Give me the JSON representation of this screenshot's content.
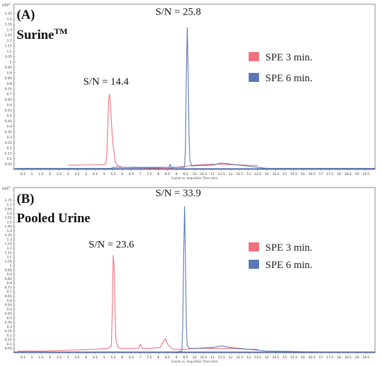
{
  "colors": {
    "spe3": "#f0707c",
    "spe6": "#5a77b6",
    "baseline": "#3b57a6",
    "frame": "#888888"
  },
  "chart_data": [
    {
      "type": "line",
      "panel_label": "(A)",
      "sample_name": "Surine",
      "sample_sup": "TM",
      "xlabel": "Counts vs. Acquisition Time (min)",
      "y_exponent": "x10",
      "y_exponent_power": "3",
      "xlim": [
        0,
        20
      ],
      "ylim": [
        0,
        1.5
      ],
      "x_ticks": [
        "0.5",
        "1",
        "1.5",
        "2",
        "2.5",
        "3",
        "3.5",
        "4",
        "4.5",
        "5",
        "5.5",
        "6",
        "6.5",
        "7",
        "7.5",
        "8",
        "8.5",
        "9",
        "9.5",
        "10",
        "10.5",
        "11",
        "11.5",
        "12",
        "12.5",
        "13",
        "13.5",
        "14",
        "14.5",
        "15",
        "15.5",
        "16",
        "16.5",
        "17",
        "17.5",
        "18",
        "18.5",
        "19",
        "19.5"
      ],
      "y_ticks": [
        "0.05",
        "0.1",
        "0.15",
        "0.2",
        "0.25",
        "0.3",
        "0.35",
        "0.4",
        "0.45",
        "0.5",
        "0.55",
        "0.6",
        "0.65",
        "0.7",
        "0.75",
        "0.8",
        "0.85",
        "0.9",
        "0.95",
        "1",
        "1.05",
        "1.1",
        "1.15",
        "1.2",
        "1.25",
        "1.3",
        "1.35",
        "1.4",
        "1.45"
      ],
      "annotations": [
        {
          "text": "S/N = 14.4",
          "x": 5.1,
          "y": 0.79
        },
        {
          "text": "S/N = 25.8",
          "x": 9.1,
          "y": 1.44
        }
      ],
      "series": [
        {
          "name": "SPE 3 min.",
          "color": "spe3",
          "x": [
            3.0,
            5.0,
            5.1,
            5.15,
            5.2,
            5.25,
            5.3,
            5.35,
            5.45,
            5.6,
            5.7,
            6.0,
            8.5,
            9.0,
            9.5,
            10.0,
            11.0,
            12.0,
            13.0,
            13.5
          ],
          "y": [
            0.04,
            0.045,
            0.06,
            0.15,
            0.4,
            0.66,
            0.7,
            0.6,
            0.3,
            0.08,
            0.04,
            0.02,
            0.01,
            0.02,
            0.03,
            0.04,
            0.05,
            0.045,
            0.04,
            0.035
          ]
        },
        {
          "name": "SPE 6 min.",
          "color": "spe6",
          "x": [
            0.2,
            5.4,
            5.5,
            8.6,
            8.65,
            8.7,
            9.45,
            9.5,
            9.55,
            9.6,
            9.65,
            9.7,
            9.75,
            9.85,
            10.0,
            11.0,
            11.5,
            12.0,
            13.0,
            14.0,
            17.0,
            20.0
          ],
          "y": [
            0.01,
            0.01,
            0.02,
            0.02,
            0.05,
            0.02,
            0.02,
            0.2,
            0.9,
            1.32,
            0.9,
            0.3,
            0.08,
            0.03,
            0.035,
            0.04,
            0.06,
            0.05,
            0.03,
            0.01,
            0.01,
            0.01
          ]
        }
      ]
    },
    {
      "type": "line",
      "panel_label": "(B)",
      "sample_name": "Pooled Urine",
      "xlabel": "Counts vs. Acquisition Time (min)",
      "y_exponent": "x10",
      "y_exponent_power": "3",
      "xlim": [
        0,
        20
      ],
      "ylim": [
        0,
        1.85
      ],
      "x_ticks": [
        "0.5",
        "1",
        "1.5",
        "2",
        "2.5",
        "3",
        "3.5",
        "4",
        "4.5",
        "5",
        "5.5",
        "6",
        "6.5",
        "7",
        "7.5",
        "8",
        "8.5",
        "9",
        "9.5",
        "10",
        "10.5",
        "11",
        "11.5",
        "12",
        "12.5",
        "13",
        "13.5",
        "14",
        "14.5",
        "15",
        "15.5",
        "16",
        "16.5",
        "17",
        "17.5",
        "18",
        "18.5",
        "19",
        "19.5"
      ],
      "y_ticks": [
        "0.05",
        "0.1",
        "0.15",
        "0.2",
        "0.25",
        "0.3",
        "0.35",
        "0.4",
        "0.45",
        "0.5",
        "0.55",
        "0.6",
        "0.65",
        "0.7",
        "0.75",
        "0.8",
        "0.85",
        "0.9",
        "0.95",
        "1",
        "1.05",
        "1.1",
        "1.15",
        "1.2",
        "1.25",
        "1.3",
        "1.35",
        "1.4",
        "1.45",
        "1.5",
        "1.55",
        "1.6",
        "1.65",
        "1.7",
        "1.75"
      ],
      "annotations": [
        {
          "text": "S/N = 23.6",
          "x": 5.4,
          "y": 1.21
        },
        {
          "text": "S/N = 33.9",
          "x": 9.1,
          "y": 1.8
        }
      ],
      "series": [
        {
          "name": "SPE 3 min.",
          "color": "spe3",
          "x": [
            0.2,
            1.5,
            3.0,
            4.5,
            5.2,
            5.4,
            5.45,
            5.5,
            5.55,
            5.6,
            5.65,
            5.75,
            5.9,
            6.2,
            6.9,
            7.0,
            7.1,
            7.5,
            8.1,
            8.3,
            8.4,
            8.5,
            8.6,
            8.8,
            9.0,
            9.5,
            10.0,
            12.0,
            13.0,
            13.5
          ],
          "y": [
            0.02,
            0.02,
            0.03,
            0.04,
            0.05,
            0.08,
            0.5,
            1.12,
            1.0,
            0.5,
            0.15,
            0.07,
            0.05,
            0.05,
            0.05,
            0.1,
            0.05,
            0.05,
            0.06,
            0.14,
            0.16,
            0.1,
            0.08,
            0.04,
            0.04,
            0.04,
            0.05,
            0.05,
            0.04,
            0.04
          ]
        },
        {
          "name": "SPE 6 min.",
          "color": "spe6",
          "x": [
            0.2,
            9.0,
            9.3,
            9.35,
            9.4,
            9.45,
            9.5,
            9.55,
            9.6,
            9.75,
            10.0,
            11.0,
            11.5,
            12.0,
            13.0,
            14.0,
            17.0,
            20.0
          ],
          "y": [
            0.01,
            0.01,
            0.02,
            0.3,
            1.1,
            1.68,
            1.1,
            0.3,
            0.08,
            0.05,
            0.05,
            0.06,
            0.08,
            0.06,
            0.04,
            0.02,
            0.01,
            0.01
          ]
        }
      ]
    }
  ]
}
